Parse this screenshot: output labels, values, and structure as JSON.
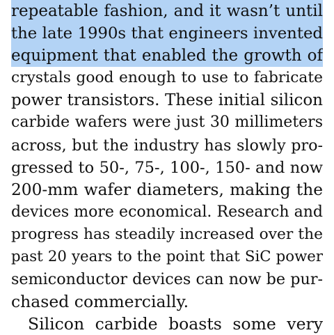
{
  "document": {
    "highlight_color": "#b3d3f5",
    "text_color": "#111111",
    "paragraphs": [
      {
        "lines": [
          "repeatable fashion, and it wasn’t until",
          "the late 1990s that engineers invented",
          "equipment that enabled the growth of",
          "crystals good enough to use to fabricate",
          "power transistors. These initial silicon",
          "carbide wafers were just 30 millimeters",
          "across, but the industry has slowly pro-",
          "gressed to 50-, 75-, 100-, 150- and now",
          "200-mm wafer diameters, making the",
          "devices more economical. Research and",
          "progress has steadily increased over the",
          "past 20 years to the point that SiC power",
          "semiconductor devices can now be pur-",
          "chased commercially."
        ],
        "highlighted_line_indices": [
          0,
          1,
          2
        ]
      },
      {
        "lines": [
          "Silicon carbide boasts some very"
        ]
      }
    ]
  }
}
